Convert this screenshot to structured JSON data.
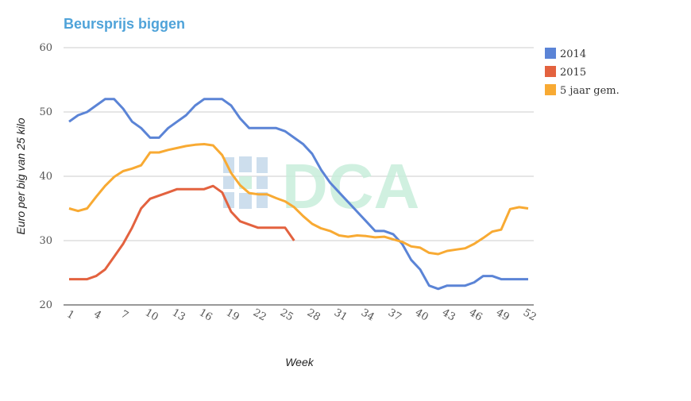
{
  "chart_data": {
    "type": "line",
    "title": "Beursprijs biggen",
    "xlabel": "Week",
    "ylabel": "Euro per big van 25 kilo",
    "ylim": [
      20,
      60
    ],
    "yticks": [
      20,
      30,
      40,
      50,
      60
    ],
    "xticks": [
      1,
      4,
      7,
      10,
      13,
      16,
      19,
      22,
      25,
      28,
      31,
      34,
      37,
      40,
      43,
      46,
      49,
      52
    ],
    "grid": true,
    "legend": "right",
    "watermark": "DCA",
    "series": [
      {
        "name": "2014",
        "color": "#5b84d6",
        "values": [
          48.5,
          49.5,
          50,
          51,
          52,
          52,
          50.5,
          48.5,
          47.5,
          46,
          46,
          47.5,
          48.5,
          49.5,
          51,
          52,
          52,
          52,
          51,
          49,
          47.5,
          47.5,
          47.5,
          47.5,
          47,
          46,
          45,
          43.5,
          41,
          39,
          37.5,
          36,
          34.5,
          33,
          31.5,
          31.5,
          31,
          29.5,
          27,
          25.5,
          23,
          22.5,
          23,
          23,
          23,
          23.5,
          24.5,
          24.5,
          24,
          24,
          24,
          24
        ]
      },
      {
        "name": "2015",
        "color": "#e3623f",
        "values": [
          24,
          24,
          24,
          24.5,
          25.5,
          27.5,
          29.5,
          32,
          35,
          36.5,
          37,
          37.5,
          38,
          38,
          38,
          38,
          38.5,
          37.5,
          34.5,
          33,
          32.5,
          32,
          32,
          32,
          32,
          30
        ]
      },
      {
        "name": "5 jaar gem.",
        "color": "#f8aa33",
        "values": [
          35,
          34.6,
          35,
          36.8,
          38.5,
          39.9,
          40.8,
          41.2,
          41.7,
          43.7,
          43.7,
          44.1,
          44.4,
          44.7,
          44.9,
          45,
          44.8,
          43.3,
          40.5,
          38.6,
          37.4,
          37.2,
          37.2,
          36.6,
          36.1,
          35.2,
          33.8,
          32.6,
          31.9,
          31.5,
          30.8,
          30.6,
          30.8,
          30.7,
          30.5,
          30.6,
          30.2,
          29.8,
          29.1,
          28.9,
          28.1,
          27.9,
          28.4,
          28.6,
          28.8,
          29.5,
          30.4,
          31.4,
          31.7,
          34.9,
          35.2,
          35
        ]
      }
    ]
  }
}
